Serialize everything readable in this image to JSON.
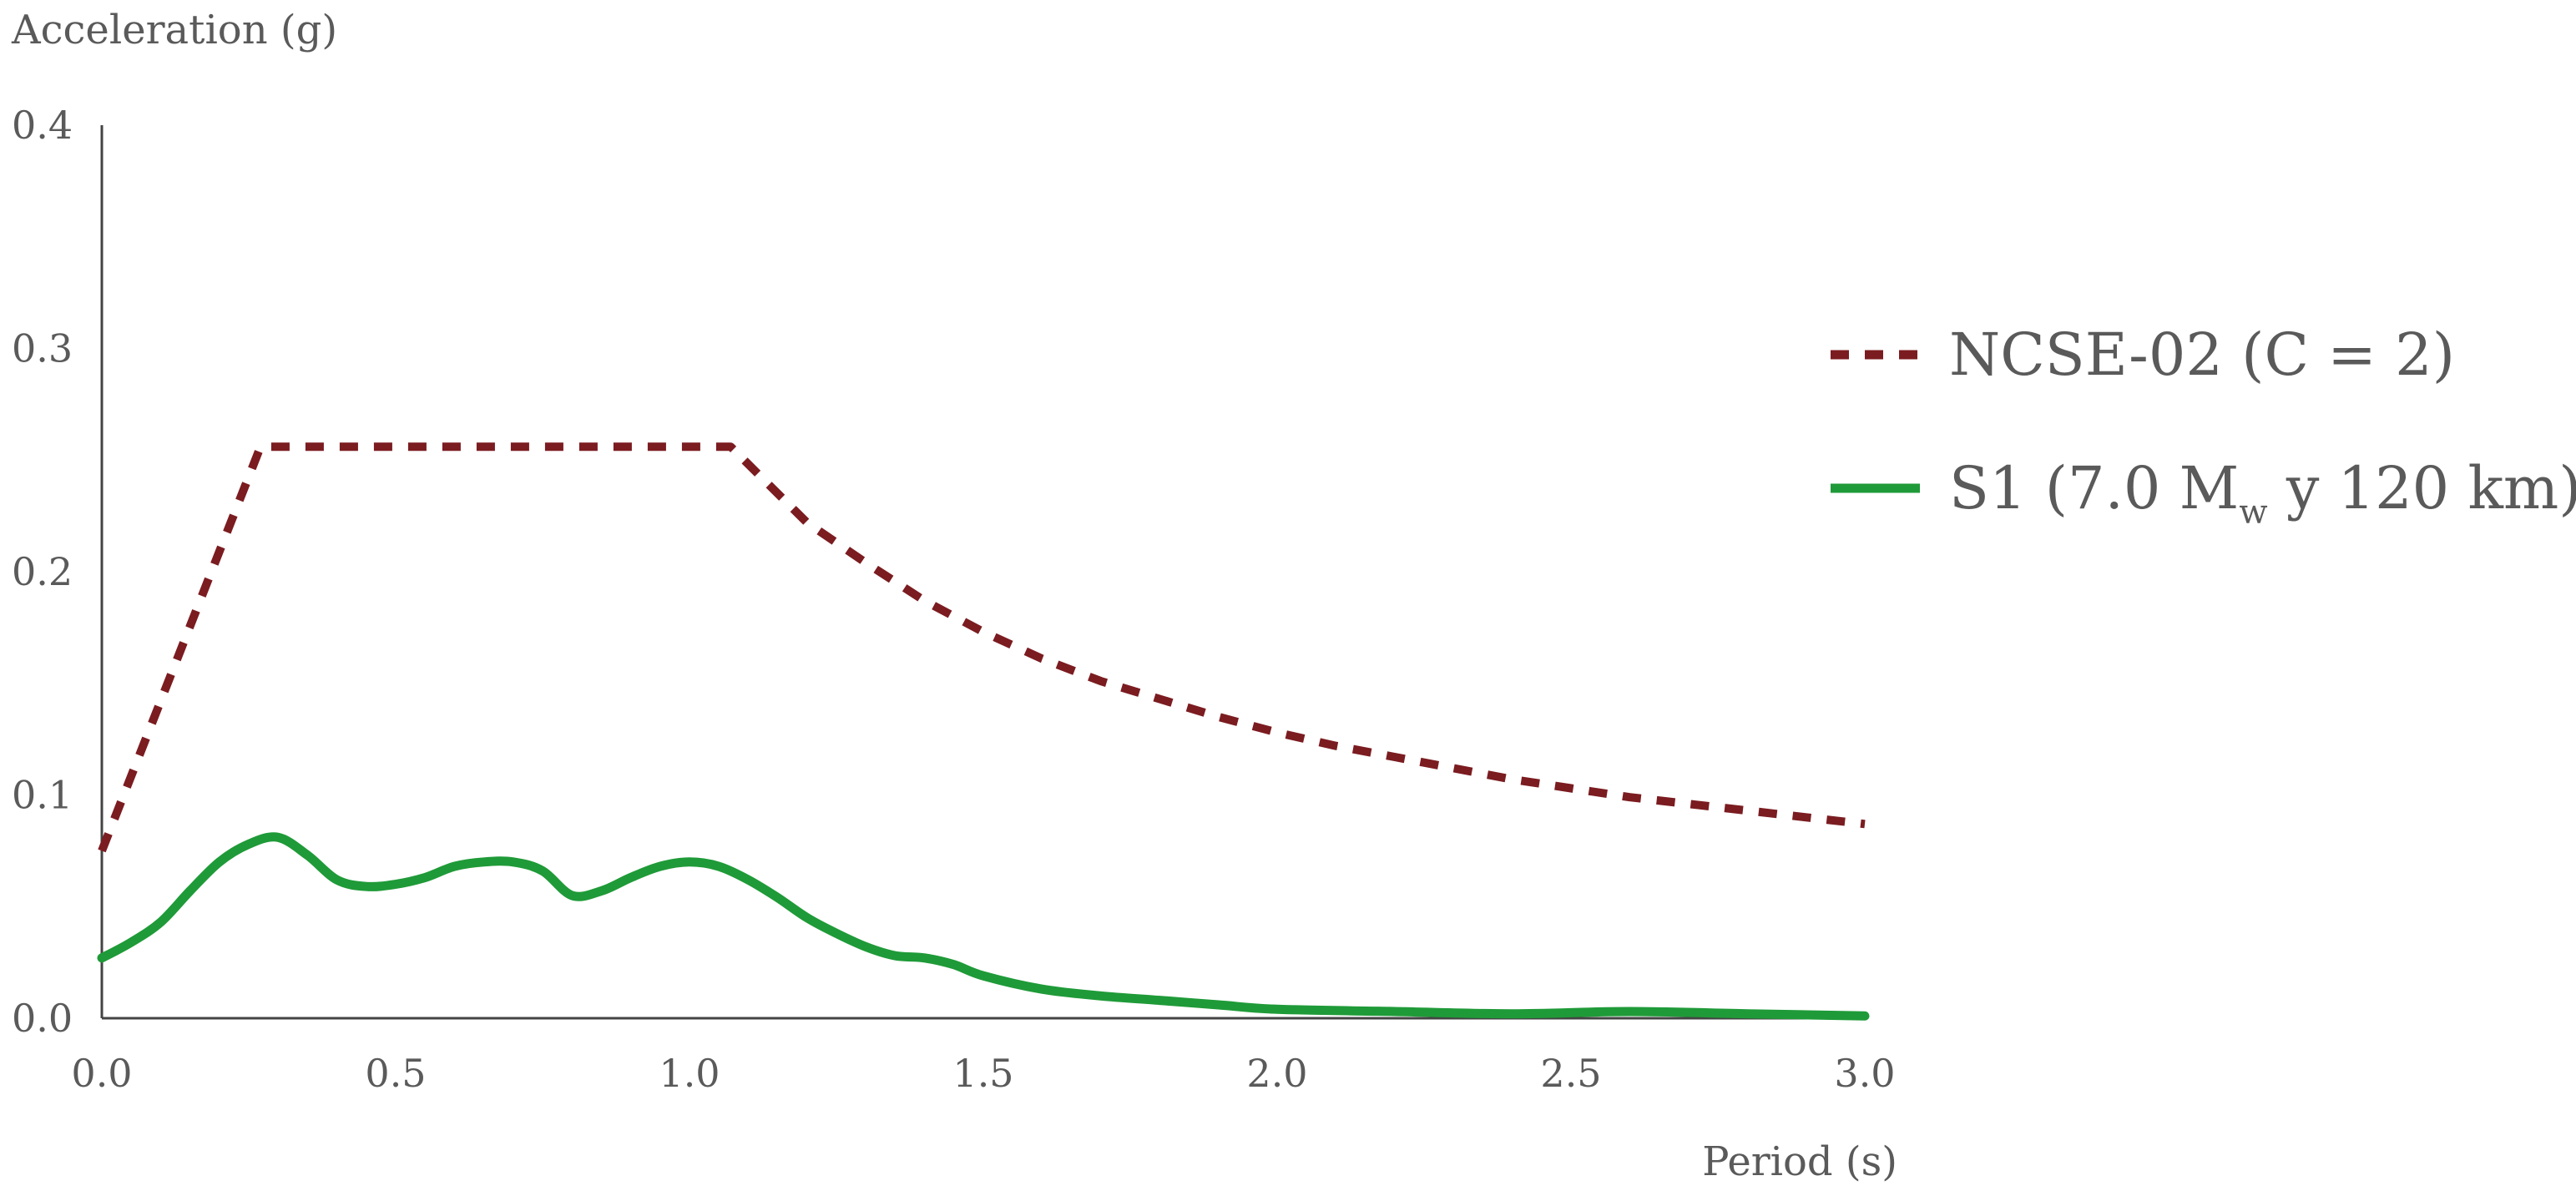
{
  "chart_data": {
    "type": "line",
    "title": "",
    "xlabel": "Period (s)",
    "ylabel": "Acceleration (g)",
    "xlim": [
      0,
      3.0
    ],
    "ylim": [
      0,
      0.4
    ],
    "x_ticks": [
      "0.0",
      "0.5",
      "1.0",
      "1.5",
      "2.0",
      "2.5",
      "3.0"
    ],
    "y_ticks": [
      "0.0",
      "0.1",
      "0.2",
      "0.3",
      "0.4"
    ],
    "grid": false,
    "legend_position": "right",
    "series": [
      {
        "name": "NCSE-02 (C = 2)",
        "name_parts": [
          "NCSE-02 (C = 2)"
        ],
        "style": "dashed",
        "color": "#7b1c20",
        "x": [
          0.0,
          0.27,
          1.07,
          1.2,
          1.3,
          1.4,
          1.5,
          1.6,
          1.7,
          1.8,
          1.9,
          2.0,
          2.1,
          2.2,
          2.3,
          2.4,
          2.5,
          2.6,
          2.7,
          2.8,
          2.9,
          3.0
        ],
        "y": [
          0.075,
          0.256,
          0.256,
          0.222,
          0.204,
          0.187,
          0.173,
          0.161,
          0.151,
          0.143,
          0.135,
          0.128,
          0.122,
          0.117,
          0.112,
          0.107,
          0.103,
          0.099,
          0.096,
          0.093,
          0.09,
          0.087
        ]
      },
      {
        "name": "S1 (7.0 Mw y 120 km)",
        "name_parts": [
          "S1 (7.0 M",
          "w",
          " y 120 km)"
        ],
        "style": "solid",
        "color": "#1f9a38",
        "x": [
          0.0,
          0.05,
          0.1,
          0.15,
          0.2,
          0.25,
          0.3,
          0.35,
          0.4,
          0.45,
          0.5,
          0.55,
          0.6,
          0.65,
          0.7,
          0.75,
          0.8,
          0.85,
          0.9,
          0.95,
          1.0,
          1.05,
          1.1,
          1.15,
          1.2,
          1.25,
          1.3,
          1.35,
          1.4,
          1.45,
          1.5,
          1.6,
          1.7,
          1.8,
          1.9,
          2.0,
          2.2,
          2.4,
          2.6,
          2.8,
          3.0
        ],
        "y": [
          0.027,
          0.034,
          0.043,
          0.057,
          0.07,
          0.078,
          0.081,
          0.073,
          0.062,
          0.059,
          0.06,
          0.063,
          0.068,
          0.07,
          0.07,
          0.066,
          0.055,
          0.057,
          0.063,
          0.068,
          0.07,
          0.068,
          0.062,
          0.054,
          0.045,
          0.038,
          0.032,
          0.028,
          0.027,
          0.024,
          0.019,
          0.013,
          0.01,
          0.008,
          0.006,
          0.004,
          0.003,
          0.002,
          0.003,
          0.002,
          0.001
        ]
      }
    ]
  }
}
